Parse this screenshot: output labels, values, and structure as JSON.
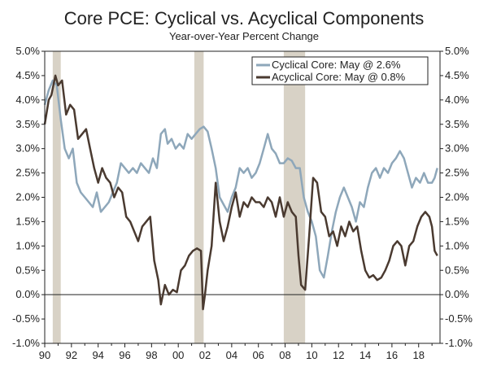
{
  "chart_data": {
    "type": "line",
    "title": "Core PCE: Cyclical vs. Acyclical Components",
    "subtitle": "Year-over-Year Percent Change",
    "xlabel": "",
    "ylabel": "",
    "xlim": [
      1990,
      2019.6
    ],
    "ylim": [
      -1.0,
      5.0
    ],
    "x_ticks": [
      1990,
      1992,
      1994,
      1996,
      1998,
      2000,
      2002,
      2004,
      2006,
      2008,
      2010,
      2012,
      2014,
      2016,
      2018
    ],
    "x_tick_labels": [
      "90",
      "92",
      "94",
      "96",
      "98",
      "00",
      "02",
      "04",
      "06",
      "08",
      "10",
      "12",
      "14",
      "16",
      "18"
    ],
    "y_ticks": [
      -1.0,
      -0.5,
      0.0,
      0.5,
      1.0,
      1.5,
      2.0,
      2.5,
      3.0,
      3.5,
      4.0,
      4.5,
      5.0
    ],
    "y_tick_labels": [
      "-1.0%",
      "-0.5%",
      "0.0%",
      "0.5%",
      "1.0%",
      "1.5%",
      "2.0%",
      "2.5%",
      "3.0%",
      "3.5%",
      "4.0%",
      "4.5%",
      "5.0%"
    ],
    "recessions": [
      [
        1990.6,
        1991.2
      ],
      [
        2001.2,
        2001.9
      ],
      [
        2007.9,
        2009.5
      ]
    ],
    "legend": {
      "placement": "top-right"
    },
    "series": [
      {
        "name": "Cyclical Core: May @ 2.6%",
        "color": "#8ea7ba",
        "points": [
          [
            1990.0,
            3.9
          ],
          [
            1990.3,
            4.2
          ],
          [
            1990.6,
            4.4
          ],
          [
            1990.9,
            4.3
          ],
          [
            1991.2,
            3.6
          ],
          [
            1991.5,
            3.0
          ],
          [
            1991.8,
            2.8
          ],
          [
            1992.1,
            3.0
          ],
          [
            1992.4,
            2.3
          ],
          [
            1992.7,
            2.1
          ],
          [
            1993.0,
            2.0
          ],
          [
            1993.3,
            1.9
          ],
          [
            1993.6,
            1.8
          ],
          [
            1993.9,
            2.1
          ],
          [
            1994.2,
            1.7
          ],
          [
            1994.5,
            1.8
          ],
          [
            1994.8,
            1.9
          ],
          [
            1995.1,
            2.1
          ],
          [
            1995.4,
            2.3
          ],
          [
            1995.7,
            2.7
          ],
          [
            1996.0,
            2.6
          ],
          [
            1996.3,
            2.5
          ],
          [
            1996.6,
            2.6
          ],
          [
            1996.9,
            2.5
          ],
          [
            1997.2,
            2.7
          ],
          [
            1997.5,
            2.6
          ],
          [
            1997.8,
            2.5
          ],
          [
            1998.1,
            2.8
          ],
          [
            1998.4,
            2.6
          ],
          [
            1998.7,
            3.3
          ],
          [
            1999.0,
            3.4
          ],
          [
            1999.2,
            3.1
          ],
          [
            1999.5,
            3.2
          ],
          [
            1999.8,
            3.0
          ],
          [
            2000.1,
            3.1
          ],
          [
            2000.4,
            3.0
          ],
          [
            2000.7,
            3.3
          ],
          [
            2001.0,
            3.2
          ],
          [
            2001.3,
            3.3
          ],
          [
            2001.6,
            3.4
          ],
          [
            2001.9,
            3.45
          ],
          [
            2002.2,
            3.35
          ],
          [
            2002.5,
            3.0
          ],
          [
            2002.8,
            2.6
          ],
          [
            2003.1,
            2.0
          ],
          [
            2003.4,
            1.85
          ],
          [
            2003.7,
            1.7
          ],
          [
            2004.0,
            2.0
          ],
          [
            2004.3,
            2.2
          ],
          [
            2004.6,
            2.6
          ],
          [
            2004.9,
            2.5
          ],
          [
            2005.2,
            2.6
          ],
          [
            2005.5,
            2.4
          ],
          [
            2005.8,
            2.5
          ],
          [
            2006.1,
            2.7
          ],
          [
            2006.4,
            3.0
          ],
          [
            2006.7,
            3.3
          ],
          [
            2007.0,
            3.0
          ],
          [
            2007.3,
            2.9
          ],
          [
            2007.6,
            2.7
          ],
          [
            2007.9,
            2.7
          ],
          [
            2008.2,
            2.8
          ],
          [
            2008.5,
            2.75
          ],
          [
            2008.8,
            2.6
          ],
          [
            2009.1,
            2.6
          ],
          [
            2009.4,
            2.0
          ],
          [
            2009.7,
            1.7
          ],
          [
            2010.0,
            1.5
          ],
          [
            2010.3,
            1.2
          ],
          [
            2010.6,
            0.5
          ],
          [
            2010.9,
            0.35
          ],
          [
            2011.2,
            0.8
          ],
          [
            2011.5,
            1.3
          ],
          [
            2011.8,
            1.7
          ],
          [
            2012.1,
            2.0
          ],
          [
            2012.4,
            2.2
          ],
          [
            2012.7,
            2.0
          ],
          [
            2013.0,
            1.8
          ],
          [
            2013.3,
            1.5
          ],
          [
            2013.6,
            1.9
          ],
          [
            2013.9,
            1.8
          ],
          [
            2014.2,
            2.2
          ],
          [
            2014.5,
            2.5
          ],
          [
            2014.8,
            2.6
          ],
          [
            2015.1,
            2.4
          ],
          [
            2015.4,
            2.6
          ],
          [
            2015.7,
            2.5
          ],
          [
            2016.0,
            2.7
          ],
          [
            2016.3,
            2.8
          ],
          [
            2016.6,
            2.95
          ],
          [
            2016.9,
            2.8
          ],
          [
            2017.2,
            2.5
          ],
          [
            2017.5,
            2.2
          ],
          [
            2017.8,
            2.4
          ],
          [
            2018.1,
            2.3
          ],
          [
            2018.4,
            2.5
          ],
          [
            2018.7,
            2.3
          ],
          [
            2019.0,
            2.3
          ],
          [
            2019.2,
            2.4
          ],
          [
            2019.4,
            2.6
          ]
        ]
      },
      {
        "name": "Acyclical Core: May @ 0.8%",
        "color": "#4a3a30",
        "points": [
          [
            1990.0,
            3.5
          ],
          [
            1990.3,
            4.0
          ],
          [
            1990.5,
            4.1
          ],
          [
            1990.8,
            4.5
          ],
          [
            1991.0,
            4.3
          ],
          [
            1991.3,
            4.4
          ],
          [
            1991.6,
            3.7
          ],
          [
            1991.9,
            3.9
          ],
          [
            1992.2,
            3.8
          ],
          [
            1992.5,
            3.2
          ],
          [
            1992.8,
            3.3
          ],
          [
            1993.1,
            3.4
          ],
          [
            1993.4,
            3.0
          ],
          [
            1993.7,
            2.6
          ],
          [
            1994.0,
            2.3
          ],
          [
            1994.3,
            2.6
          ],
          [
            1994.6,
            2.4
          ],
          [
            1994.9,
            2.3
          ],
          [
            1995.2,
            2.0
          ],
          [
            1995.5,
            2.2
          ],
          [
            1995.8,
            2.1
          ],
          [
            1996.1,
            1.6
          ],
          [
            1996.4,
            1.5
          ],
          [
            1996.7,
            1.3
          ],
          [
            1997.0,
            1.1
          ],
          [
            1997.3,
            1.4
          ],
          [
            1997.6,
            1.5
          ],
          [
            1997.9,
            1.6
          ],
          [
            1998.2,
            0.7
          ],
          [
            1998.5,
            0.3
          ],
          [
            1998.7,
            -0.2
          ],
          [
            1999.0,
            0.2
          ],
          [
            1999.3,
            0.0
          ],
          [
            1999.6,
            0.1
          ],
          [
            1999.9,
            0.05
          ],
          [
            2000.2,
            0.5
          ],
          [
            2000.5,
            0.6
          ],
          [
            2000.8,
            0.8
          ],
          [
            2001.1,
            0.9
          ],
          [
            2001.4,
            0.95
          ],
          [
            2001.7,
            0.9
          ],
          [
            2001.85,
            -0.3
          ],
          [
            2002.0,
            0.0
          ],
          [
            2002.2,
            0.5
          ],
          [
            2002.5,
            1.0
          ],
          [
            2002.8,
            2.3
          ],
          [
            2003.1,
            1.5
          ],
          [
            2003.4,
            1.1
          ],
          [
            2003.7,
            1.4
          ],
          [
            2004.0,
            1.8
          ],
          [
            2004.3,
            2.1
          ],
          [
            2004.6,
            1.6
          ],
          [
            2004.9,
            1.9
          ],
          [
            2005.2,
            1.8
          ],
          [
            2005.5,
            2.0
          ],
          [
            2005.8,
            1.9
          ],
          [
            2006.1,
            1.9
          ],
          [
            2006.4,
            1.8
          ],
          [
            2006.7,
            2.0
          ],
          [
            2007.0,
            1.9
          ],
          [
            2007.3,
            1.6
          ],
          [
            2007.6,
            2.0
          ],
          [
            2007.9,
            1.6
          ],
          [
            2008.2,
            1.9
          ],
          [
            2008.5,
            1.7
          ],
          [
            2008.8,
            1.6
          ],
          [
            2009.0,
            0.8
          ],
          [
            2009.2,
            0.2
          ],
          [
            2009.5,
            0.1
          ],
          [
            2009.8,
            1.2
          ],
          [
            2010.1,
            2.4
          ],
          [
            2010.4,
            2.3
          ],
          [
            2010.7,
            1.7
          ],
          [
            2011.0,
            1.6
          ],
          [
            2011.3,
            1.2
          ],
          [
            2011.6,
            1.3
          ],
          [
            2011.9,
            1.0
          ],
          [
            2012.2,
            1.4
          ],
          [
            2012.5,
            1.2
          ],
          [
            2012.8,
            1.5
          ],
          [
            2013.1,
            1.3
          ],
          [
            2013.4,
            1.4
          ],
          [
            2013.7,
            0.9
          ],
          [
            2014.0,
            0.5
          ],
          [
            2014.3,
            0.35
          ],
          [
            2014.6,
            0.4
          ],
          [
            2014.9,
            0.3
          ],
          [
            2015.2,
            0.35
          ],
          [
            2015.5,
            0.5
          ],
          [
            2015.8,
            0.7
          ],
          [
            2016.1,
            1.0
          ],
          [
            2016.4,
            1.1
          ],
          [
            2016.7,
            1.0
          ],
          [
            2017.0,
            0.6
          ],
          [
            2017.3,
            1.0
          ],
          [
            2017.6,
            1.1
          ],
          [
            2017.9,
            1.4
          ],
          [
            2018.2,
            1.6
          ],
          [
            2018.5,
            1.7
          ],
          [
            2018.8,
            1.6
          ],
          [
            2019.0,
            1.4
          ],
          [
            2019.2,
            0.9
          ],
          [
            2019.4,
            0.8
          ]
        ]
      }
    ]
  }
}
